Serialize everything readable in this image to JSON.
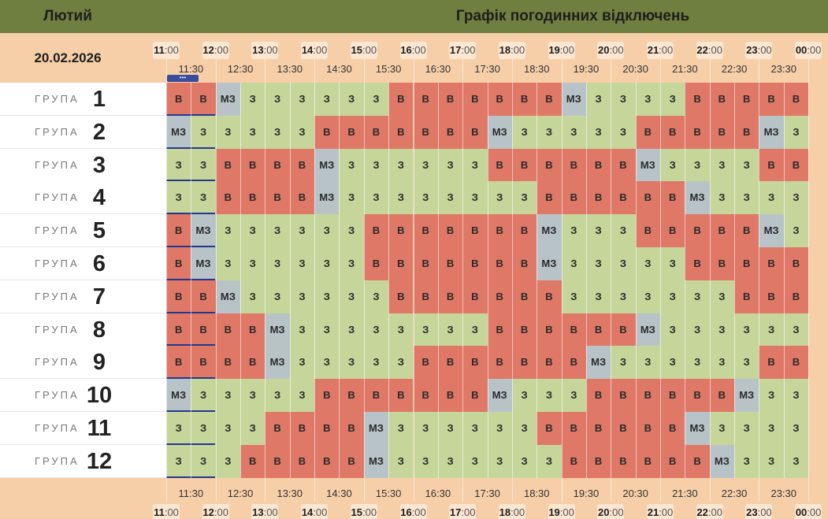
{
  "header": {
    "month": "Лютий",
    "title": "Графік погодинних відключень"
  },
  "date": "20.02.2026",
  "now_marker": "•••",
  "hours": [
    "11",
    "12",
    "13",
    "14",
    "15",
    "16",
    "17",
    "18",
    "19",
    "20",
    "21",
    "22",
    "23",
    "00"
  ],
  "minutes_suffix": ":00",
  "half_hours": [
    "11:30",
    "12:30",
    "13:30",
    "14:30",
    "15:30",
    "16:30",
    "17:30",
    "18:30",
    "19:30",
    "20:30",
    "21:30",
    "22:30",
    "23:30"
  ],
  "group_word": "ГРУПА",
  "status_labels": {
    "z": "З",
    "v": "В",
    "mz": "МЗ"
  },
  "status_colors": {
    "z": "#c6d69b",
    "v": "#df7866",
    "mz": "#b8c3c8",
    "now": "#25378d"
  },
  "groups": [
    {
      "num": "1",
      "cells": [
        "v",
        "v",
        "mz",
        "z",
        "z",
        "z",
        "z",
        "z",
        "z",
        "v",
        "v",
        "v",
        "v",
        "v",
        "v",
        "v",
        "mz",
        "z",
        "z",
        "z",
        "z",
        "v",
        "v",
        "v",
        "v",
        "v"
      ]
    },
    {
      "num": "2",
      "cells": [
        "mz",
        "z",
        "z",
        "z",
        "z",
        "z",
        "v",
        "v",
        "v",
        "v",
        "v",
        "v",
        "v",
        "mz",
        "z",
        "z",
        "z",
        "z",
        "z",
        "v",
        "v",
        "v",
        "v",
        "v",
        "mz",
        "z"
      ]
    },
    {
      "num": "3",
      "cells": [
        "z",
        "z",
        "v",
        "v",
        "v",
        "v",
        "mz",
        "z",
        "z",
        "z",
        "z",
        "z",
        "z",
        "v",
        "v",
        "v",
        "v",
        "v",
        "v",
        "mz",
        "z",
        "z",
        "z",
        "z",
        "v",
        "v"
      ]
    },
    {
      "num": "4",
      "cells": [
        "z",
        "z",
        "v",
        "v",
        "v",
        "v",
        "mz",
        "z",
        "z",
        "z",
        "z",
        "z",
        "z",
        "z",
        "z",
        "v",
        "v",
        "v",
        "v",
        "v",
        "v",
        "mz",
        "z",
        "z",
        "z",
        "z"
      ]
    },
    {
      "num": "5",
      "cells": [
        "v",
        "mz",
        "z",
        "z",
        "z",
        "z",
        "z",
        "z",
        "v",
        "v",
        "v",
        "v",
        "v",
        "v",
        "v",
        "mz",
        "z",
        "z",
        "z",
        "v",
        "v",
        "v",
        "v",
        "v",
        "mz",
        "z"
      ]
    },
    {
      "num": "6",
      "cells": [
        "v",
        "mz",
        "z",
        "z",
        "z",
        "z",
        "z",
        "z",
        "v",
        "v",
        "v",
        "v",
        "v",
        "v",
        "v",
        "mz",
        "z",
        "z",
        "z",
        "z",
        "z",
        "v",
        "v",
        "v",
        "v",
        "v"
      ]
    },
    {
      "num": "7",
      "cells": [
        "v",
        "v",
        "mz",
        "z",
        "z",
        "z",
        "z",
        "z",
        "z",
        "v",
        "v",
        "v",
        "v",
        "v",
        "v",
        "v",
        "z",
        "z",
        "z",
        "z",
        "z",
        "z",
        "z",
        "v",
        "v",
        "v"
      ]
    },
    {
      "num": "8",
      "cells": [
        "v",
        "v",
        "v",
        "v",
        "mz",
        "z",
        "z",
        "z",
        "z",
        "z",
        "z",
        "z",
        "z",
        "v",
        "v",
        "v",
        "v",
        "v",
        "v",
        "mz",
        "z",
        "z",
        "z",
        "z",
        "z",
        "z"
      ]
    },
    {
      "num": "9",
      "cells": [
        "v",
        "v",
        "v",
        "v",
        "mz",
        "z",
        "z",
        "z",
        "z",
        "z",
        "v",
        "v",
        "v",
        "v",
        "v",
        "v",
        "v",
        "mz",
        "z",
        "z",
        "z",
        "z",
        "z",
        "z",
        "v",
        "v"
      ]
    },
    {
      "num": "10",
      "cells": [
        "mz",
        "z",
        "z",
        "z",
        "z",
        "z",
        "v",
        "v",
        "v",
        "v",
        "v",
        "v",
        "v",
        "mz",
        "z",
        "z",
        "z",
        "v",
        "v",
        "v",
        "v",
        "v",
        "v",
        "mz",
        "z",
        "z"
      ]
    },
    {
      "num": "11",
      "cells": [
        "z",
        "z",
        "z",
        "z",
        "v",
        "v",
        "v",
        "v",
        "mz",
        "z",
        "z",
        "z",
        "z",
        "z",
        "z",
        "v",
        "v",
        "v",
        "v",
        "v",
        "v",
        "mz",
        "z",
        "z",
        "z",
        "z"
      ]
    },
    {
      "num": "12",
      "cells": [
        "z",
        "z",
        "z",
        "v",
        "v",
        "v",
        "v",
        "v",
        "mz",
        "z",
        "z",
        "z",
        "z",
        "z",
        "z",
        "z",
        "v",
        "v",
        "v",
        "v",
        "v",
        "v",
        "mz",
        "z",
        "z",
        "z"
      ]
    }
  ]
}
